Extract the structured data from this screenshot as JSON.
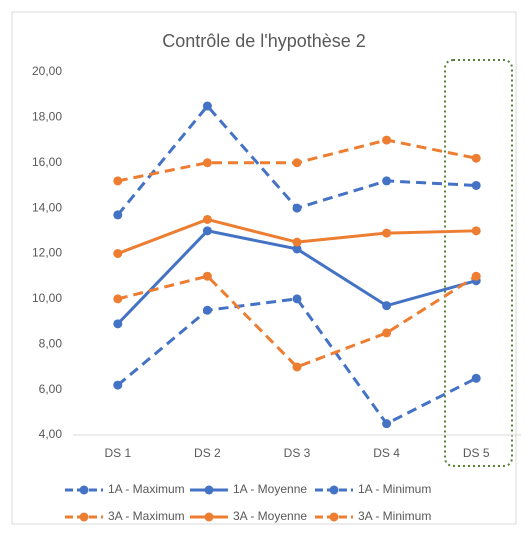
{
  "chart_data": {
    "type": "line",
    "title": "Contrôle de l'hypothèse 2",
    "categories": [
      "DS 1",
      "DS 2",
      "DS 3",
      "DS 4",
      "DS 5"
    ],
    "series": [
      {
        "name": "1A - Maximum",
        "color": "#4472c4",
        "dashed": true,
        "values": [
          13.7,
          18.5,
          14.0,
          15.2,
          15.0
        ]
      },
      {
        "name": "1A - Moyenne",
        "color": "#4472c4",
        "dashed": false,
        "values": [
          8.9,
          13.0,
          12.2,
          9.7,
          10.8
        ]
      },
      {
        "name": "1A - Minimum",
        "color": "#4472c4",
        "dashed": true,
        "values": [
          6.2,
          9.5,
          10.0,
          4.5,
          6.5
        ]
      },
      {
        "name": "3A - Maximum",
        "color": "#ed7d31",
        "dashed": true,
        "values": [
          15.2,
          16.0,
          16.0,
          17.0,
          16.2
        ]
      },
      {
        "name": "3A - Moyenne",
        "color": "#ed7d31",
        "dashed": false,
        "values": [
          12.0,
          13.5,
          12.5,
          12.9,
          13.0
        ]
      },
      {
        "name": "3A - Minimum",
        "color": "#ed7d31",
        "dashed": true,
        "values": [
          10.0,
          11.0,
          7.0,
          8.5,
          11.0
        ]
      }
    ],
    "ylim": [
      4,
      20
    ],
    "yticks": [
      {
        "value": 4,
        "label": "4,00"
      },
      {
        "value": 6,
        "label": "6,00"
      },
      {
        "value": 8,
        "label": "8,00"
      },
      {
        "value": 10,
        "label": "10,00"
      },
      {
        "value": 12,
        "label": "12,00"
      },
      {
        "value": 14,
        "label": "14,00"
      },
      {
        "value": 16,
        "label": "16,00"
      },
      {
        "value": 18,
        "label": "18,00"
      },
      {
        "value": 20,
        "label": "20,00"
      }
    ],
    "grid": false,
    "legend": "bottom"
  }
}
